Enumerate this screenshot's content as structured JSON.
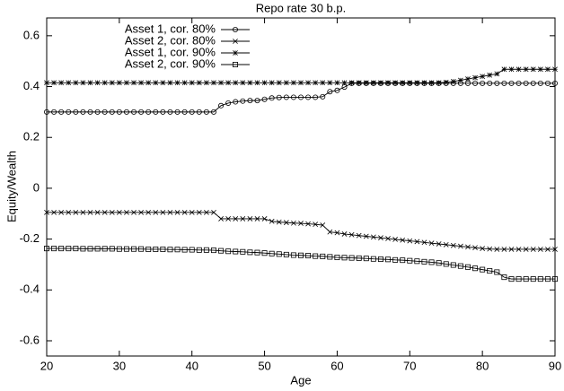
{
  "chart_data": {
    "type": "line",
    "title": "Repo rate 30 b.p.",
    "x_label": "Age",
    "y_label": "Equity/Wealth",
    "x": [
      20,
      21,
      22,
      23,
      24,
      25,
      26,
      27,
      28,
      29,
      30,
      31,
      32,
      33,
      34,
      35,
      36,
      37,
      38,
      39,
      40,
      41,
      42,
      43,
      44,
      45,
      46,
      47,
      48,
      49,
      50,
      51,
      52,
      53,
      54,
      55,
      56,
      57,
      58,
      59,
      60,
      61,
      62,
      63,
      64,
      65,
      66,
      67,
      68,
      69,
      70,
      71,
      72,
      73,
      74,
      75,
      76,
      77,
      78,
      79,
      80,
      81,
      82,
      83,
      84,
      85,
      86,
      87,
      88,
      89,
      90
    ],
    "series": [
      {
        "name": "Asset 1, cor. 80%",
        "color": "#000000",
        "marker": "circle",
        "values": [
          0.3,
          0.3,
          0.3,
          0.3,
          0.3,
          0.3,
          0.3,
          0.3,
          0.3,
          0.3,
          0.3,
          0.3,
          0.3,
          0.3,
          0.3,
          0.3,
          0.3,
          0.3,
          0.3,
          0.3,
          0.3,
          0.3,
          0.3,
          0.3,
          0.325,
          0.335,
          0.34,
          0.343,
          0.345,
          0.345,
          0.35,
          0.355,
          0.357,
          0.358,
          0.358,
          0.358,
          0.358,
          0.358,
          0.36,
          0.38,
          0.385,
          0.398,
          0.413,
          0.413,
          0.413,
          0.413,
          0.413,
          0.413,
          0.413,
          0.413,
          0.413,
          0.413,
          0.413,
          0.413,
          0.413,
          0.413,
          0.413,
          0.413,
          0.413,
          0.413,
          0.413,
          0.413,
          0.413,
          0.413,
          0.413,
          0.413,
          0.413,
          0.413,
          0.413,
          0.413,
          0.413
        ]
      },
      {
        "name": "Asset 2, cor. 80%",
        "color": "#000000",
        "marker": "cross",
        "values": [
          -0.095,
          -0.095,
          -0.095,
          -0.095,
          -0.095,
          -0.095,
          -0.095,
          -0.095,
          -0.095,
          -0.095,
          -0.095,
          -0.095,
          -0.095,
          -0.095,
          -0.095,
          -0.095,
          -0.095,
          -0.095,
          -0.095,
          -0.095,
          -0.095,
          -0.095,
          -0.095,
          -0.095,
          -0.12,
          -0.12,
          -0.12,
          -0.12,
          -0.12,
          -0.12,
          -0.12,
          -0.13,
          -0.133,
          -0.135,
          -0.137,
          -0.138,
          -0.14,
          -0.142,
          -0.145,
          -0.172,
          -0.175,
          -0.18,
          -0.183,
          -0.186,
          -0.189,
          -0.192,
          -0.195,
          -0.198,
          -0.201,
          -0.204,
          -0.207,
          -0.21,
          -0.213,
          -0.216,
          -0.219,
          -0.222,
          -0.225,
          -0.228,
          -0.231,
          -0.234,
          -0.237,
          -0.239,
          -0.24,
          -0.24,
          -0.24,
          -0.24,
          -0.24,
          -0.24,
          -0.24,
          -0.24,
          -0.24
        ]
      },
      {
        "name": "Asset 1, cor. 90%",
        "color": "#000000",
        "marker": "star",
        "values": [
          0.415,
          0.415,
          0.415,
          0.415,
          0.415,
          0.415,
          0.415,
          0.415,
          0.415,
          0.415,
          0.415,
          0.415,
          0.415,
          0.415,
          0.415,
          0.415,
          0.415,
          0.415,
          0.415,
          0.415,
          0.415,
          0.415,
          0.415,
          0.415,
          0.415,
          0.415,
          0.415,
          0.415,
          0.415,
          0.415,
          0.415,
          0.415,
          0.415,
          0.415,
          0.415,
          0.415,
          0.415,
          0.415,
          0.415,
          0.415,
          0.415,
          0.415,
          0.415,
          0.415,
          0.415,
          0.415,
          0.415,
          0.415,
          0.415,
          0.415,
          0.415,
          0.415,
          0.415,
          0.415,
          0.415,
          0.417,
          0.42,
          0.425,
          0.43,
          0.435,
          0.44,
          0.445,
          0.45,
          0.468,
          0.468,
          0.468,
          0.468,
          0.468,
          0.468,
          0.468,
          0.468
        ]
      },
      {
        "name": "Asset 2, cor. 90%",
        "color": "#000000",
        "marker": "square",
        "values": [
          -0.237,
          -0.237,
          -0.237,
          -0.237,
          -0.237,
          -0.238,
          -0.238,
          -0.238,
          -0.238,
          -0.238,
          -0.239,
          -0.239,
          -0.239,
          -0.239,
          -0.24,
          -0.24,
          -0.24,
          -0.241,
          -0.241,
          -0.242,
          -0.242,
          -0.243,
          -0.243,
          -0.244,
          -0.246,
          -0.248,
          -0.249,
          -0.25,
          -0.252,
          -0.253,
          -0.255,
          -0.257,
          -0.259,
          -0.261,
          -0.263,
          -0.264,
          -0.265,
          -0.267,
          -0.268,
          -0.27,
          -0.272,
          -0.273,
          -0.274,
          -0.275,
          -0.276,
          -0.278,
          -0.279,
          -0.28,
          -0.282,
          -0.283,
          -0.285,
          -0.287,
          -0.289,
          -0.291,
          -0.294,
          -0.298,
          -0.302,
          -0.306,
          -0.31,
          -0.315,
          -0.32,
          -0.325,
          -0.33,
          -0.35,
          -0.357,
          -0.357,
          -0.357,
          -0.357,
          -0.357,
          -0.357,
          -0.357
        ]
      }
    ],
    "xlim": [
      20,
      90
    ],
    "xticks": [
      20,
      30,
      40,
      50,
      60,
      70,
      80,
      90
    ],
    "ylim": [
      -0.66,
      0.67
    ],
    "yticks": [
      -0.6,
      -0.4,
      -0.2,
      0,
      0.2,
      0.4,
      0.6
    ],
    "grid": false,
    "legend": "top-left"
  }
}
